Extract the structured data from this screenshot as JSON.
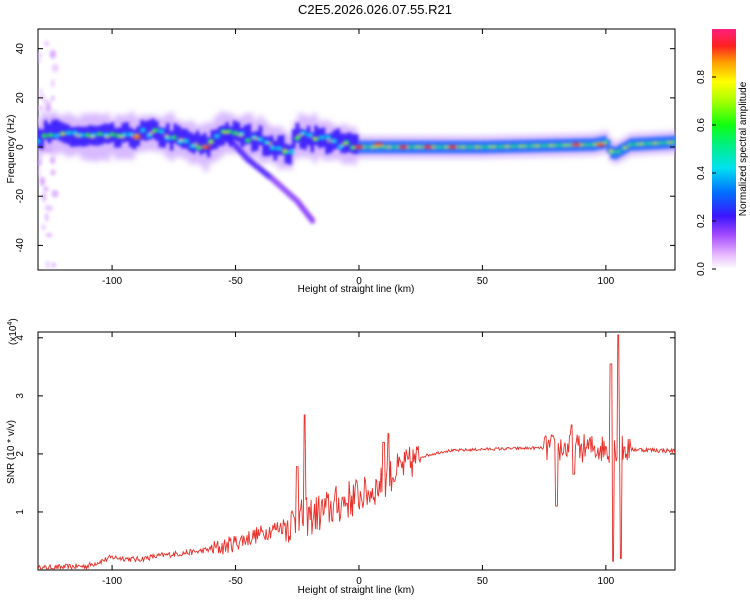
{
  "title": "C2E5.2026.026.07.55.R21",
  "chart_data": [
    {
      "type": "heatmap",
      "title": "C2E5.2026.026.07.55.R21",
      "xlabel": "Height of straight line (km)",
      "ylabel": "Frequency (Hz)",
      "xlim": [
        -130,
        128
      ],
      "ylim": [
        -50,
        48
      ],
      "xticks": [
        -100,
        -50,
        0,
        50,
        100
      ],
      "yticks": [
        -40,
        -20,
        0,
        20,
        40
      ],
      "grid": false,
      "colorbar": {
        "label": "Normalized spectral amplitude",
        "range": [
          0.0,
          1.0
        ],
        "ticks": [
          "0.0",
          "0.2",
          "0.4",
          "0.6",
          "0.8"
        ]
      },
      "ridge": [
        {
          "x": -128,
          "y": 6
        },
        {
          "x": -110,
          "y": 4
        },
        {
          "x": -95,
          "y": 4
        },
        {
          "x": -85,
          "y": 6
        },
        {
          "x": -75,
          "y": 4
        },
        {
          "x": -62,
          "y": 0
        },
        {
          "x": -55,
          "y": 6
        },
        {
          "x": -40,
          "y": 3
        },
        {
          "x": -28,
          "y": -2
        },
        {
          "x": -25,
          "y": 5
        },
        {
          "x": -10,
          "y": 2
        },
        {
          "x": 0,
          "y": 0
        },
        {
          "x": 20,
          "y": 0
        },
        {
          "x": 50,
          "y": 0
        },
        {
          "x": 95,
          "y": 1
        },
        {
          "x": 100,
          "y": 2
        },
        {
          "x": 103,
          "y": -3
        },
        {
          "x": 110,
          "y": 1
        },
        {
          "x": 128,
          "y": 2
        }
      ],
      "hotspots": [
        {
          "x": 18,
          "y": 0
        },
        {
          "x": 28,
          "y": 0
        },
        {
          "x": 38,
          "y": 0
        },
        {
          "x": 0,
          "y": 0
        },
        {
          "x": 8,
          "y": 1
        },
        {
          "x": 88,
          "y": 1
        },
        {
          "x": 98,
          "y": 1
        },
        {
          "x": -90,
          "y": 4
        },
        {
          "x": -62,
          "y": 0
        }
      ],
      "dispersive_branch": [
        {
          "x": -55,
          "y": 6
        },
        {
          "x": -45,
          "y": -5
        },
        {
          "x": -35,
          "y": -13
        },
        {
          "x": -25,
          "y": -22
        },
        {
          "x": -18,
          "y": -31
        }
      ],
      "scatter_column": {
        "x": -127,
        "ymin": -48,
        "ymax": 45
      }
    },
    {
      "type": "line",
      "title": "",
      "xlabel": "Height of straight line (km)",
      "ylabel": "SNR (10 * v/v)",
      "yscale_label": "(x10",
      "yscale_exp": "4",
      "xlim": [
        -130,
        128
      ],
      "ylim": [
        0,
        4.1
      ],
      "xticks": [
        -100,
        -50,
        0,
        50,
        100
      ],
      "yticks": [
        1,
        2,
        3,
        4
      ],
      "color": "#e8302a",
      "grid": false,
      "envelope": [
        {
          "x": -130,
          "y": 0.03
        },
        {
          "x": -110,
          "y": 0.07
        },
        {
          "x": -100,
          "y": 0.22
        },
        {
          "x": -90,
          "y": 0.18
        },
        {
          "x": -80,
          "y": 0.25
        },
        {
          "x": -65,
          "y": 0.32
        },
        {
          "x": -55,
          "y": 0.4
        },
        {
          "x": -45,
          "y": 0.55
        },
        {
          "x": -35,
          "y": 0.7
        },
        {
          "x": -25,
          "y": 0.85
        },
        {
          "x": -15,
          "y": 1.0
        },
        {
          "x": -5,
          "y": 1.2
        },
        {
          "x": 5,
          "y": 1.35
        },
        {
          "x": 15,
          "y": 1.7
        },
        {
          "x": 25,
          "y": 1.95
        },
        {
          "x": 35,
          "y": 2.05
        },
        {
          "x": 50,
          "y": 2.08
        },
        {
          "x": 70,
          "y": 2.1
        },
        {
          "x": 85,
          "y": 2.1
        },
        {
          "x": 95,
          "y": 2.1
        },
        {
          "x": 110,
          "y": 2.08
        },
        {
          "x": 128,
          "y": 2.05
        }
      ],
      "spikes": [
        {
          "x": -22,
          "y": 2.67
        },
        {
          "x": -25,
          "y": 1.78
        },
        {
          "x": 10,
          "y": 2.2
        },
        {
          "x": 12,
          "y": 2.35
        },
        {
          "x": 86,
          "y": 2.5
        },
        {
          "x": 87,
          "y": 1.65
        },
        {
          "x": 80,
          "y": 1.1
        },
        {
          "x": 102,
          "y": 3.55
        },
        {
          "x": 103,
          "y": 0.15
        },
        {
          "x": 105,
          "y": 4.05
        },
        {
          "x": 106,
          "y": 0.2
        }
      ]
    }
  ]
}
